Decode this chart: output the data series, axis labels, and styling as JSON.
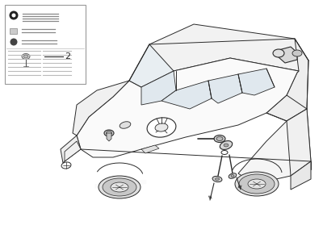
{
  "bg_color": "#ffffff",
  "line_color": "#2a2a2a",
  "car_fill": "#ffffff",
  "light_line": "#888888",
  "box_bg": "#ffffff",
  "fig_width": 4.0,
  "fig_height": 3.0,
  "dpi": 100,
  "part_label": "2",
  "outer_border": "#cccccc",
  "gray_fill": "#e8e8e8",
  "mid_gray": "#aaaaaa",
  "dark_gray": "#555555"
}
